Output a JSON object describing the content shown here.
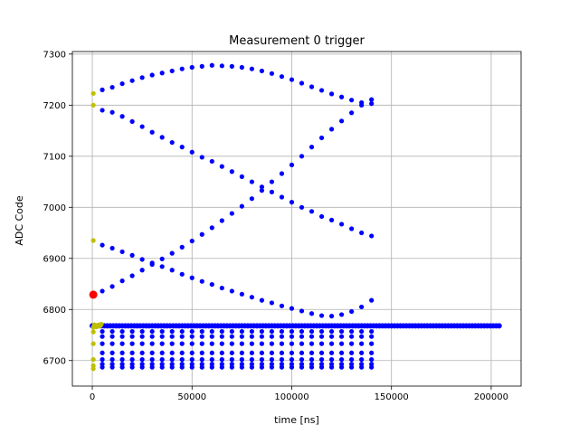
{
  "chart_data": {
    "type": "scatter",
    "title": "Measurement 0 trigger",
    "xlabel": "time [ns]",
    "ylabel": "ADC Code",
    "xlim": [
      -10000,
      215000
    ],
    "ylim": [
      6650,
      7305
    ],
    "xticks": [
      0,
      50000,
      100000,
      150000,
      200000
    ],
    "yticks": [
      6700,
      6800,
      6900,
      7000,
      7100,
      7200,
      7300
    ],
    "grid": true,
    "colors": {
      "main": "#0000ff",
      "aux": "#bfbf00",
      "trigger": "#ff0000",
      "grid": "#b0b0b0"
    },
    "series": [
      {
        "role": "upper-arc",
        "color": "#0000ff",
        "x": [
          5000,
          10000,
          15000,
          20000,
          25000,
          30000,
          35000,
          40000,
          45000,
          50000,
          55000,
          60000,
          65000,
          70000,
          75000,
          80000,
          85000,
          90000,
          95000,
          100000,
          105000,
          110000,
          115000,
          120000,
          125000,
          130000,
          135000,
          140000
        ],
        "y": [
          7230,
          7235,
          7242,
          7248,
          7254,
          7259,
          7263,
          7267,
          7271,
          7274,
          7276,
          7278,
          7277,
          7276,
          7274,
          7271,
          7267,
          7262,
          7256,
          7250,
          7243,
          7236,
          7229,
          7222,
          7216,
          7210,
          7205,
          7203
        ]
      },
      {
        "role": "descending-line",
        "color": "#0000ff",
        "x": [
          5000,
          10000,
          15000,
          20000,
          25000,
          30000,
          35000,
          40000,
          45000,
          50000,
          55000,
          60000,
          65000,
          70000,
          75000,
          80000,
          85000,
          90000,
          95000,
          100000,
          105000,
          110000,
          115000,
          120000,
          125000,
          130000,
          135000,
          140000
        ],
        "y": [
          7190,
          7186,
          7178,
          7168,
          7158,
          7147,
          7137,
          7127,
          7118,
          7108,
          7098,
          7090,
          7080,
          7070,
          7060,
          7050,
          7040,
          7030,
          7020,
          7010,
          7000,
          6992,
          6982,
          6975,
          6967,
          6958,
          6950,
          6944
        ]
      },
      {
        "role": "ascending-line",
        "color": "#0000ff",
        "x": [
          5000,
          10000,
          15000,
          20000,
          25000,
          30000,
          35000,
          40000,
          45000,
          50000,
          55000,
          60000,
          65000,
          70000,
          75000,
          80000,
          85000,
          90000,
          95000,
          100000,
          105000,
          110000,
          115000,
          120000,
          125000,
          130000,
          135000,
          140000
        ],
        "y": [
          6836,
          6845,
          6856,
          6866,
          6877,
          6888,
          6899,
          6910,
          6922,
          6934,
          6947,
          6960,
          6974,
          6988,
          7002,
          7017,
          7033,
          7050,
          7066,
          7083,
          7100,
          7118,
          7136,
          7153,
          7169,
          7185,
          7200,
          7211
        ]
      },
      {
        "role": "lower-arc",
        "color": "#0000ff",
        "x": [
          5000,
          10000,
          15000,
          20000,
          25000,
          30000,
          35000,
          40000,
          45000,
          50000,
          55000,
          60000,
          65000,
          70000,
          75000,
          80000,
          85000,
          90000,
          95000,
          100000,
          105000,
          110000,
          115000,
          120000,
          125000,
          130000,
          135000,
          140000
        ],
        "y": [
          6926,
          6920,
          6913,
          6906,
          6898,
          6891,
          6884,
          6877,
          6869,
          6862,
          6855,
          6849,
          6842,
          6836,
          6830,
          6824,
          6818,
          6813,
          6807,
          6802,
          6797,
          6792,
          6788,
          6787,
          6790,
          6796,
          6805,
          6818
        ]
      },
      {
        "role": "baseline",
        "color": "#0000ff",
        "x_range": [
          0,
          205000
        ],
        "x_step": 1500,
        "y": 6768
      },
      {
        "role": "level-6757",
        "color": "#0000ff",
        "x_range": [
          5000,
          140000
        ],
        "x_step": 5000,
        "y": 6757
      },
      {
        "role": "level-6747",
        "color": "#0000ff",
        "x_range": [
          5000,
          140000
        ],
        "x_step": 5000,
        "y": 6747
      },
      {
        "role": "level-6733",
        "color": "#0000ff",
        "x_range": [
          5000,
          140000
        ],
        "x_step": 5000,
        "y": 6733
      },
      {
        "role": "level-6715",
        "color": "#0000ff",
        "x_range": [
          5000,
          140000
        ],
        "x_step": 5000,
        "y": 6715
      },
      {
        "role": "level-6702",
        "color": "#0000ff",
        "x_range": [
          5000,
          140000
        ],
        "x_step": 5000,
        "y": 6702
      },
      {
        "role": "level-6693",
        "color": "#0000ff",
        "x_range": [
          5000,
          140000
        ],
        "x_step": 5000,
        "y": 6693
      },
      {
        "role": "level-6687",
        "color": "#0000ff",
        "x_range": [
          5000,
          140000
        ],
        "x_step": 5000,
        "y": 6687
      },
      {
        "role": "aux",
        "color": "#bfbf00",
        "x": [
          500,
          500,
          500,
          500,
          500,
          500,
          500,
          500,
          500,
          1000,
          1500,
          2000,
          2500,
          3000,
          3500,
          4000,
          4500
        ],
        "y": [
          7223,
          7200,
          6935,
          6765,
          6756,
          6733,
          6702,
          6690,
          6684,
          6770,
          6768,
          6766,
          6769,
          6767,
          6770,
          6768,
          6771
        ]
      },
      {
        "role": "trigger",
        "color": "#ff0000",
        "x": [
          500
        ],
        "y": [
          6829
        ]
      }
    ]
  }
}
